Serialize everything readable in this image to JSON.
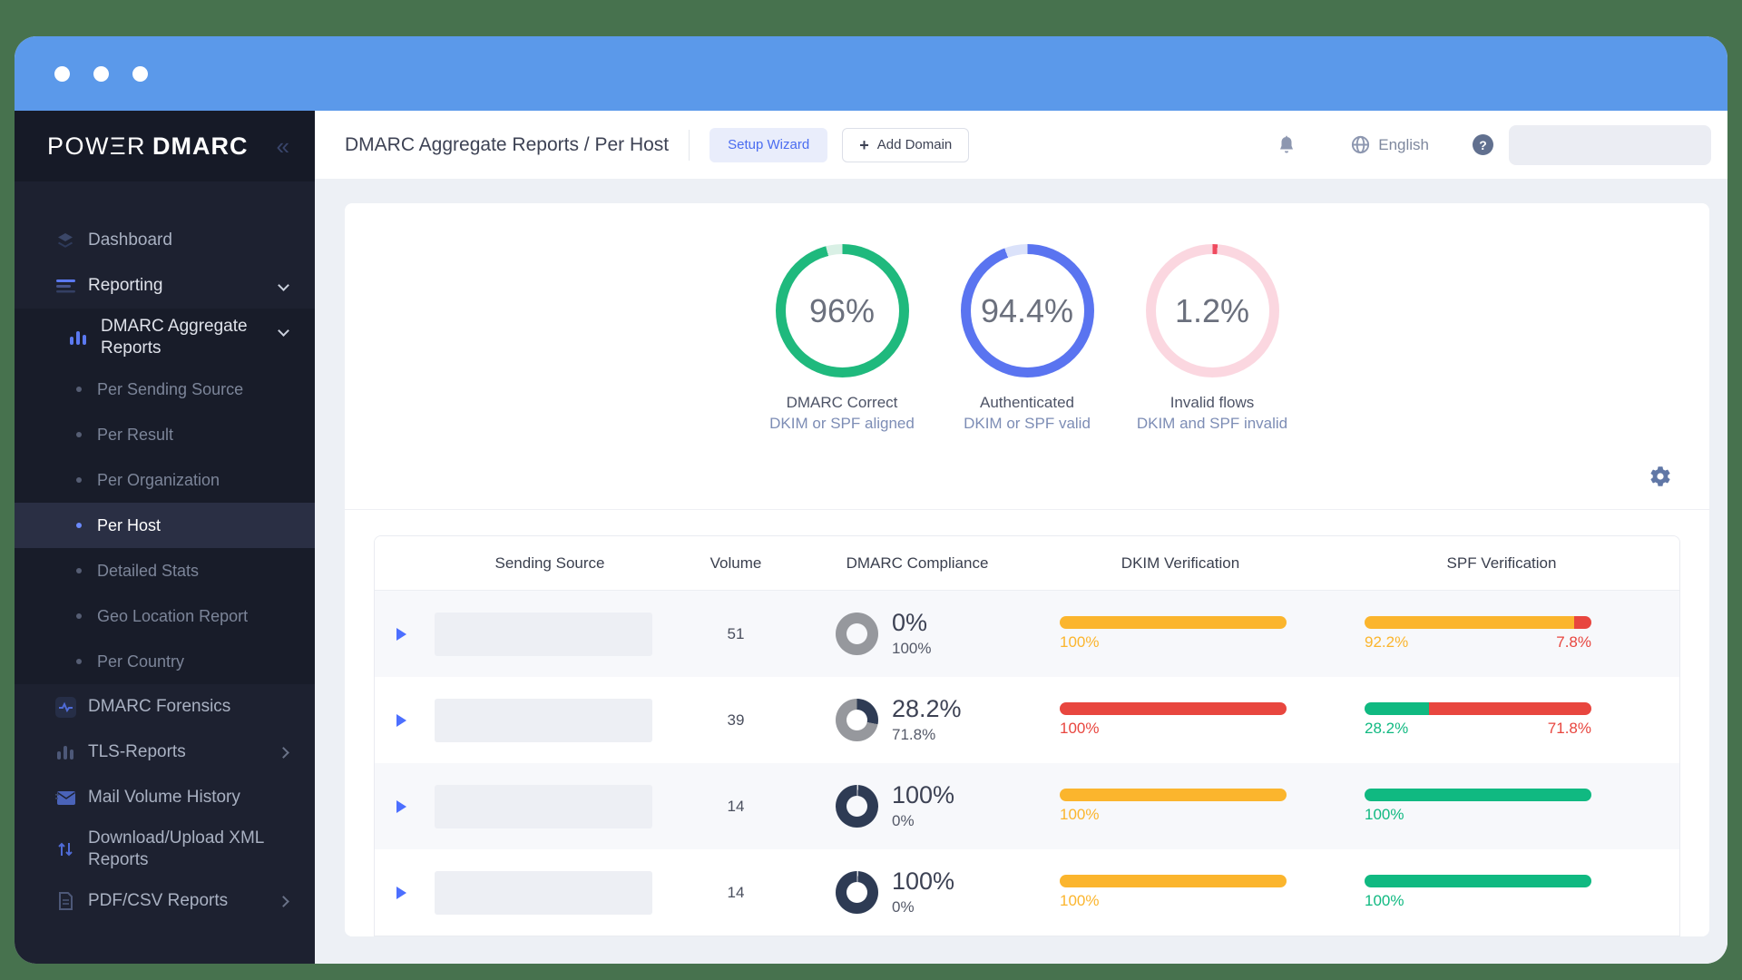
{
  "frame": {
    "background": "#47724e",
    "titlebar_color": "#5b99ea"
  },
  "brand": {
    "logo_text": "POWΞR",
    "logo_text2": "DMARC",
    "collapse_icon": "«"
  },
  "sidebar": {
    "items": [
      {
        "label": "Dashboard",
        "icon": "layers"
      },
      {
        "label": "Reporting",
        "icon": "lines",
        "chevron": "down",
        "bright": true
      },
      {
        "label": "DMARC Aggregate Reports",
        "icon": "bars-blue",
        "level": 1,
        "chevron": "down",
        "bright": true,
        "wrap": true,
        "block": true
      },
      {
        "label": "Per Sending Source",
        "bullet": true,
        "block": true
      },
      {
        "label": "Per Result",
        "bullet": true,
        "block": true
      },
      {
        "label": "Per Organization",
        "bullet": true,
        "block": true
      },
      {
        "label": "Per Host",
        "bullet": true,
        "block": true,
        "active": true
      },
      {
        "label": "Detailed Stats",
        "bullet": true,
        "block": true
      },
      {
        "label": "Geo Location Report",
        "bullet": true,
        "block": true
      },
      {
        "label": "Per Country",
        "bullet": true,
        "block": true
      },
      {
        "label": "DMARC Forensics",
        "icon": "pulse"
      },
      {
        "label": "TLS-Reports",
        "icon": "bars-gray",
        "chevron": "right"
      },
      {
        "label": "Mail Volume History",
        "icon": "mail"
      },
      {
        "label": "Download/Upload XML Reports",
        "icon": "updown",
        "wrap": true
      },
      {
        "label": "PDF/CSV Reports",
        "icon": "doc",
        "chevron": "right"
      }
    ]
  },
  "header": {
    "title": "DMARC Aggregate Reports / Per Host",
    "buttons": {
      "setup_wizard": "Setup Wizard",
      "add_domain_plus": "+",
      "add_domain": "Add Domain"
    },
    "language": "English",
    "help": "?"
  },
  "overview": {
    "donuts": [
      {
        "value_label": "96%",
        "percent": 96,
        "color": "#1fb97d",
        "remainder_color": "#d9f0e5",
        "caption": "DMARC Correct",
        "subcaption": "DKIM or SPF aligned"
      },
      {
        "value_label": "94.4%",
        "percent": 94.4,
        "color": "#5a74f0",
        "remainder_color": "#dbe2fa",
        "caption": "Authenticated",
        "subcaption": "DKIM or SPF valid"
      },
      {
        "value_label": "1.2%",
        "percent": 1.2,
        "color": "#ef4a5e",
        "remainder_color": "#fbd7e0",
        "caption": "Invalid flows",
        "subcaption": "DKIM and SPF invalid"
      }
    ]
  },
  "table": {
    "columns": [
      "Sending Source",
      "Volume",
      "DMARC Compliance",
      "DKIM Verification",
      "SPF Verification"
    ],
    "compliance_colors": {
      "fill": "#2e3b54",
      "rest": "#96989d",
      "tick": "#d8dade"
    },
    "rows": [
      {
        "volume": "51",
        "compliance": {
          "percent": 0,
          "main": "0%",
          "sub": "100%"
        },
        "dkim": {
          "segments": [
            {
              "percent": 100,
              "color": "#fbb52d",
              "label": "100%"
            }
          ]
        },
        "spf": {
          "segments": [
            {
              "percent": 92.2,
              "color": "#fbb52d",
              "label": "92.2%"
            },
            {
              "percent": 7.8,
              "color": "#e8463f",
              "label": "7.8%"
            }
          ]
        }
      },
      {
        "volume": "39",
        "compliance": {
          "percent": 28.2,
          "main": "28.2%",
          "sub": "71.8%"
        },
        "dkim": {
          "segments": [
            {
              "percent": 100,
              "color": "#e8463f",
              "label": "100%"
            }
          ]
        },
        "spf": {
          "segments": [
            {
              "percent": 28.2,
              "color": "#10b981",
              "label": "28.2%"
            },
            {
              "percent": 71.8,
              "color": "#e8463f",
              "label": "71.8%"
            }
          ]
        }
      },
      {
        "volume": "14",
        "compliance": {
          "percent": 100,
          "main": "100%",
          "sub": "0%"
        },
        "dkim": {
          "segments": [
            {
              "percent": 100,
              "color": "#fbb52d",
              "label": "100%"
            }
          ]
        },
        "spf": {
          "segments": [
            {
              "percent": 100,
              "color": "#10b981",
              "label": "100%"
            }
          ]
        }
      },
      {
        "volume": "14",
        "compliance": {
          "percent": 100,
          "main": "100%",
          "sub": "0%"
        },
        "dkim": {
          "segments": [
            {
              "percent": 100,
              "color": "#fbb52d",
              "label": "100%"
            }
          ]
        },
        "spf": {
          "segments": [
            {
              "percent": 100,
              "color": "#10b981",
              "label": "100%"
            }
          ]
        }
      }
    ]
  }
}
